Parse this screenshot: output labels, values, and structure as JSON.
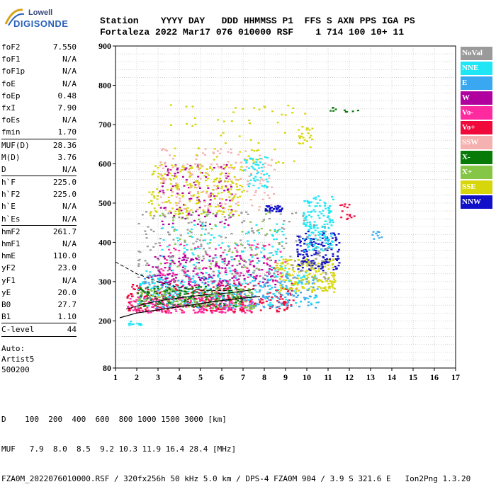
{
  "logo": {
    "line1": "Lowell",
    "line2": "DIGISONDE"
  },
  "header": {
    "labels": "Station    YYYY DAY   DDD HHMMSS P1  FFS S AXN PPS IGA PS",
    "values": "Fortaleza 2022 Mar17 076 010000 RSF    1 714 100 10+ 11"
  },
  "parameters": [
    {
      "name": "foF2",
      "value": "7.550"
    },
    {
      "name": "foF1",
      "value": "N/A"
    },
    {
      "name": "foF1p",
      "value": "N/A"
    },
    {
      "name": "foE",
      "value": "N/A"
    },
    {
      "name": "foEp",
      "value": "0.48"
    },
    {
      "name": "fxI",
      "value": "7.90"
    },
    {
      "name": "foEs",
      "value": "N/A"
    },
    {
      "name": "fmin",
      "value": "1.70"
    },
    {
      "sep": true
    },
    {
      "name": "MUF(D)",
      "value": "28.36"
    },
    {
      "name": "M(D)",
      "value": "3.76"
    },
    {
      "name": "D",
      "value": "N/A"
    },
    {
      "sep": true
    },
    {
      "name": "h`F",
      "value": "225.0"
    },
    {
      "name": "h`F2",
      "value": "225.0"
    },
    {
      "name": "h`E",
      "value": "N/A"
    },
    {
      "name": "h`Es",
      "value": "N/A"
    },
    {
      "sep": true
    },
    {
      "name": "hmF2",
      "value": "261.7"
    },
    {
      "name": "hmF1",
      "value": "N/A"
    },
    {
      "name": "hmE",
      "value": "110.0"
    },
    {
      "name": "yF2",
      "value": "23.0"
    },
    {
      "name": "yF1",
      "value": "N/A"
    },
    {
      "name": "yE",
      "value": "20.0"
    },
    {
      "name": "B0",
      "value": "27.7"
    },
    {
      "name": "B1",
      "value": "1.10"
    },
    {
      "sep": true
    },
    {
      "name": "C-level",
      "value": "44"
    },
    {
      "sep": true
    }
  ],
  "auto": {
    "line1": "Auto:",
    "line2": "Artist5",
    "line3": "500200"
  },
  "legend": [
    {
      "label": "NoVal",
      "color": "#9a9a9a"
    },
    {
      "label": "NNE",
      "color": "#1ee6f5"
    },
    {
      "label": "E",
      "color": "#3aa8f0"
    },
    {
      "label": "W",
      "color": "#b0009e"
    },
    {
      "label": "Vo-",
      "color": "#ff2aa0"
    },
    {
      "label": "Vo+",
      "color": "#f00a3c"
    },
    {
      "label": "SSW",
      "color": "#f5b0b0"
    },
    {
      "label": "X-",
      "color": "#087a08"
    },
    {
      "label": "X+",
      "color": "#86c646"
    },
    {
      "label": "SSE",
      "color": "#d6d60a"
    },
    {
      "label": "NNW",
      "color": "#1010c8"
    }
  ],
  "footer": {
    "line1": "D    100  200  400  600  800 1000 1500 3000 [km]",
    "line2": "MUF   7.9  8.0  8.5  9.2 10.3 11.9 16.4 28.4 [MHz]",
    "line3": "FZA0M_2022076010000.RSF / 320fx256h 50 kHz 5.0 km / DPS-4 FZA0M 904 / 3.9 S 321.6 E   Ion2Png 1.3.20"
  },
  "chart_data": {
    "type": "scatter",
    "xlim": [
      1,
      17
    ],
    "ylim": [
      80,
      900
    ],
    "x_ticks": [
      "1",
      "2",
      "3",
      "4",
      "5",
      "6",
      "7",
      "8",
      "9",
      "10",
      "11",
      "12",
      "13",
      "14",
      "15",
      "16",
      "17"
    ],
    "y_ticks": [
      {
        "value": 80,
        "label": "80"
      },
      {
        "value": 200,
        "label": "200"
      },
      {
        "value": 300,
        "label": "300"
      },
      {
        "value": 400,
        "label": "400"
      },
      {
        "value": 500,
        "label": "500"
      },
      {
        "value": 600,
        "label": "600"
      },
      {
        "value": 700,
        "label": "700"
      },
      {
        "value": 800,
        "label": "800"
      },
      {
        "value": 900,
        "label": "900"
      }
    ],
    "grid": true,
    "x_unit": "MHz",
    "y_unit": "km",
    "trace_black": [
      [
        1.2,
        208
      ],
      [
        2,
        220
      ],
      [
        3,
        228
      ],
      [
        4,
        236
      ],
      [
        5,
        244
      ],
      [
        6,
        252
      ],
      [
        7,
        258
      ],
      [
        7.8,
        262
      ]
    ],
    "trace_dashed": [
      [
        1,
        350
      ],
      [
        2,
        320
      ],
      [
        3,
        300
      ],
      [
        4,
        285
      ],
      [
        5,
        278
      ],
      [
        6,
        277
      ],
      [
        6.5,
        278
      ]
    ],
    "trace_profile": [
      [
        1.5,
        230
      ],
      [
        2.5,
        245
      ],
      [
        3.5,
        255
      ],
      [
        4.5,
        262
      ],
      [
        5.5,
        268
      ],
      [
        6.5,
        272
      ],
      [
        7.5,
        280
      ]
    ],
    "clusters": [
      {
        "series": "Vo-",
        "xmin": 1.5,
        "xmax": 7.5,
        "ymin": 222,
        "ymax": 265,
        "n": 320
      },
      {
        "series": "Vo+",
        "xmin": 1.5,
        "xmax": 9.5,
        "ymin": 225,
        "ymax": 300,
        "n": 280
      },
      {
        "series": "E",
        "xmin": 2.0,
        "xmax": 10.5,
        "ymin": 235,
        "ymax": 320,
        "n": 260
      },
      {
        "series": "NNE",
        "xmin": 2.0,
        "xmax": 10.5,
        "ymin": 240,
        "ymax": 330,
        "n": 220
      },
      {
        "series": "SSE",
        "xmin": 8.5,
        "xmax": 11.3,
        "ymin": 275,
        "ymax": 360,
        "n": 180
      },
      {
        "series": "X+",
        "xmin": 2.0,
        "xmax": 7.5,
        "ymin": 232,
        "ymax": 285,
        "n": 160
      },
      {
        "series": "X-",
        "xmin": 2.0,
        "xmax": 7.0,
        "ymin": 238,
        "ymax": 290,
        "n": 120
      },
      {
        "series": "W",
        "xmin": 2.5,
        "xmax": 8.5,
        "ymin": 290,
        "ymax": 370,
        "n": 200
      },
      {
        "series": "W",
        "xmin": 3.0,
        "xmax": 6.5,
        "ymin": 440,
        "ymax": 600,
        "n": 120
      },
      {
        "series": "NNW",
        "xmin": 9.5,
        "xmax": 11.5,
        "ymin": 330,
        "ymax": 430,
        "n": 160
      },
      {
        "series": "NNW",
        "xmin": 8.0,
        "xmax": 8.8,
        "ymin": 480,
        "ymax": 495,
        "n": 40
      },
      {
        "series": "NNE",
        "xmin": 9.8,
        "xmax": 11.2,
        "ymin": 380,
        "ymax": 520,
        "n": 150
      },
      {
        "series": "SSE",
        "xmin": 2.5,
        "xmax": 7.0,
        "ymin": 470,
        "ymax": 600,
        "n": 220
      },
      {
        "series": "SSW",
        "xmin": 3.0,
        "xmax": 8.5,
        "ymin": 480,
        "ymax": 640,
        "n": 150
      },
      {
        "series": "SSE",
        "xmin": 3.5,
        "xmax": 10.0,
        "ymin": 600,
        "ymax": 760,
        "n": 60
      },
      {
        "series": "NoVal",
        "xmin": 2.0,
        "xmax": 11.0,
        "ymin": 300,
        "ymax": 480,
        "n": 220
      },
      {
        "series": "NNE",
        "xmin": 3.0,
        "xmax": 9.0,
        "ymin": 330,
        "ymax": 450,
        "n": 100
      },
      {
        "series": "Vo-",
        "xmin": 3.0,
        "xmax": 9.0,
        "ymin": 300,
        "ymax": 400,
        "n": 80
      },
      {
        "series": "X+",
        "xmin": 3.0,
        "xmax": 9.0,
        "ymin": 330,
        "ymax": 480,
        "n": 60
      },
      {
        "series": "E",
        "xmin": 13.0,
        "xmax": 13.6,
        "ymin": 400,
        "ymax": 430,
        "n": 10
      },
      {
        "series": "X-",
        "xmin": 11.0,
        "xmax": 12.5,
        "ymin": 730,
        "ymax": 745,
        "n": 10
      },
      {
        "series": "Vo+",
        "xmin": 11.5,
        "xmax": 12.2,
        "ymin": 460,
        "ymax": 500,
        "n": 15
      },
      {
        "series": "NNE",
        "xmin": 1.5,
        "xmax": 2.2,
        "ymin": 190,
        "ymax": 205,
        "n": 12
      },
      {
        "series": "NNE",
        "xmin": 7.0,
        "xmax": 8.2,
        "ymin": 540,
        "ymax": 620,
        "n": 50
      },
      {
        "series": "SSE",
        "xmin": 9.5,
        "xmax": 10.3,
        "ymin": 640,
        "ymax": 700,
        "n": 20
      }
    ]
  }
}
